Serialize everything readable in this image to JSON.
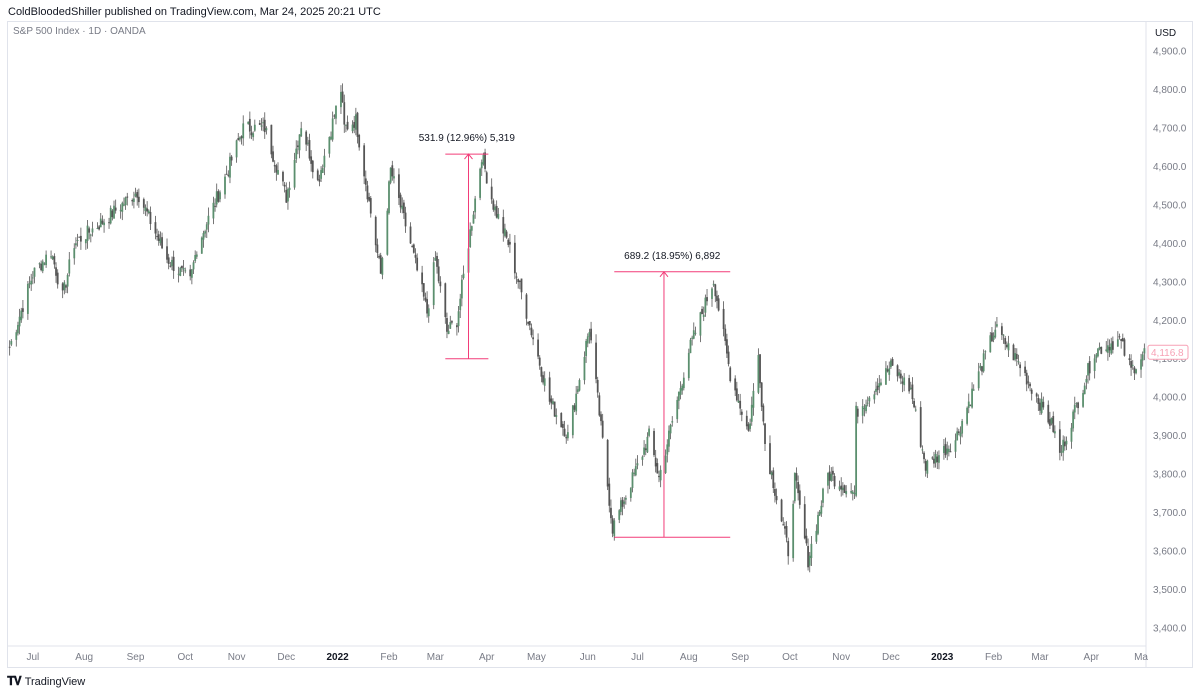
{
  "header": {
    "publisher": "ColdBloodedShiller published on TradingView.com, Mar 24, 2025 20:21 UTC"
  },
  "symbol": {
    "label": "S&P 500 Index · 1D · OANDA"
  },
  "footer": {
    "brand": "TradingView",
    "logo_icon": "tradingview-logo-icon"
  },
  "chart_data": {
    "type": "candlestick",
    "currency": "USD",
    "ylim": [
      3360,
      4960
    ],
    "y_ticks": [
      "4,900.0",
      "4,800.0",
      "4,700.0",
      "4,600.0",
      "4,500.0",
      "4,400.0",
      "4,300.0",
      "4,200.0",
      "4,100.0",
      "4,000.0",
      "3,900.0",
      "3,800.0",
      "3,700.0",
      "3,600.0",
      "3,500.0",
      "3,400.0"
    ],
    "y_tick_values": [
      4900,
      4800,
      4700,
      4600,
      4500,
      4400,
      4300,
      4200,
      4100,
      4000,
      3900,
      3800,
      3700,
      3600,
      3500,
      3400
    ],
    "x_ticks": [
      {
        "label": "Jul",
        "date": "2021-07-01",
        "bold": false
      },
      {
        "label": "Aug",
        "date": "2021-08-01",
        "bold": false
      },
      {
        "label": "Sep",
        "date": "2021-09-01",
        "bold": false
      },
      {
        "label": "Oct",
        "date": "2021-10-01",
        "bold": false
      },
      {
        "label": "Nov",
        "date": "2021-11-01",
        "bold": false
      },
      {
        "label": "Dec",
        "date": "2021-12-01",
        "bold": false
      },
      {
        "label": "2022",
        "date": "2022-01-01",
        "bold": true
      },
      {
        "label": "Feb",
        "date": "2022-02-01",
        "bold": false
      },
      {
        "label": "Mar",
        "date": "2022-03-01",
        "bold": false
      },
      {
        "label": "Apr",
        "date": "2022-04-01",
        "bold": false
      },
      {
        "label": "May",
        "date": "2022-05-01",
        "bold": false
      },
      {
        "label": "Jun",
        "date": "2022-06-01",
        "bold": false
      },
      {
        "label": "Jul",
        "date": "2022-07-01",
        "bold": false
      },
      {
        "label": "Aug",
        "date": "2022-08-01",
        "bold": false
      },
      {
        "label": "Sep",
        "date": "2022-09-01",
        "bold": false
      },
      {
        "label": "Oct",
        "date": "2022-10-01",
        "bold": false
      },
      {
        "label": "Nov",
        "date": "2022-11-01",
        "bold": false
      },
      {
        "label": "Dec",
        "date": "2022-12-01",
        "bold": false
      },
      {
        "label": "2023",
        "date": "2023-01-01",
        "bold": true
      },
      {
        "label": "Feb",
        "date": "2023-02-01",
        "bold": false
      },
      {
        "label": "Mar",
        "date": "2023-03-01",
        "bold": false
      },
      {
        "label": "Apr",
        "date": "2023-04-01",
        "bold": false
      },
      {
        "label": "Ma",
        "date": "2023-05-01",
        "bold": false
      }
    ],
    "x_range": [
      "2021-06-16",
      "2023-05-04"
    ],
    "close_anchors": [
      [
        "2021-06-17",
        4130
      ],
      [
        "2021-07-01",
        4320
      ],
      [
        "2021-07-12",
        4380
      ],
      [
        "2021-07-19",
        4260
      ],
      [
        "2021-07-26",
        4400
      ],
      [
        "2021-08-13",
        4460
      ],
      [
        "2021-09-02",
        4535
      ],
      [
        "2021-09-20",
        4360
      ],
      [
        "2021-10-04",
        4300
      ],
      [
        "2021-10-08",
        4390
      ],
      [
        "2021-10-25",
        4570
      ],
      [
        "2021-11-05",
        4700
      ],
      [
        "2021-11-18",
        4700
      ],
      [
        "2021-12-01",
        4520
      ],
      [
        "2021-12-10",
        4710
      ],
      [
        "2021-12-20",
        4560
      ],
      [
        "2022-01-03",
        4800
      ],
      [
        "2022-01-05",
        4700
      ],
      [
        "2022-01-12",
        4720
      ],
      [
        "2022-01-27",
        4320
      ],
      [
        "2022-02-02",
        4590
      ],
      [
        "2022-02-14",
        4400
      ],
      [
        "2022-02-24",
        4220
      ],
      [
        "2022-03-01",
        4360
      ],
      [
        "2022-03-08",
        4170
      ],
      [
        "2022-03-14",
        4200
      ],
      [
        "2022-03-29",
        4630
      ],
      [
        "2022-04-05",
        4500
      ],
      [
        "2022-04-14",
        4400
      ],
      [
        "2022-04-22",
        4270
      ],
      [
        "2022-05-09",
        3990
      ],
      [
        "2022-05-20",
        3900
      ],
      [
        "2022-06-02",
        4180
      ],
      [
        "2022-06-16",
        3660
      ],
      [
        "2022-07-01",
        3820
      ],
      [
        "2022-07-08",
        3900
      ],
      [
        "2022-07-14",
        3790
      ],
      [
        "2022-08-01",
        4120
      ],
      [
        "2022-08-16",
        4305
      ],
      [
        "2022-08-26",
        4060
      ],
      [
        "2022-09-06",
        3910
      ],
      [
        "2022-09-12",
        4110
      ],
      [
        "2022-09-16",
        3880
      ],
      [
        "2022-09-30",
        3600
      ],
      [
        "2022-10-04",
        3790
      ],
      [
        "2022-10-12",
        3577
      ],
      [
        "2022-10-24",
        3800
      ],
      [
        "2022-11-09",
        3750
      ],
      [
        "2022-11-10",
        3960
      ],
      [
        "2022-12-01",
        4080
      ],
      [
        "2022-12-13",
        4020
      ],
      [
        "2022-12-22",
        3820
      ],
      [
        "2023-01-09",
        3890
      ],
      [
        "2023-02-02",
        4180
      ],
      [
        "2023-02-16",
        4090
      ],
      [
        "2023-03-09",
        3920
      ],
      [
        "2023-03-13",
        3850
      ],
      [
        "2023-04-03",
        4120
      ],
      [
        "2023-04-18",
        4150
      ],
      [
        "2023-04-25",
        4070
      ],
      [
        "2023-05-03",
        4117
      ]
    ],
    "last_price": "4,116.8",
    "last_value": 4116.8,
    "annotations": [
      {
        "label": "531.9 (12.96%) 5,319",
        "from_date": "2022-03-07",
        "to_date": "2022-04-02",
        "arrow_date": "2022-03-21",
        "low": 4100,
        "high": 4632
      },
      {
        "label": "689.2 (18.95%) 6,892",
        "from_date": "2022-06-17",
        "to_date": "2022-08-26",
        "arrow_date": "2022-07-17",
        "low": 3636,
        "high": 4326
      }
    ],
    "colors": {
      "up": "#5b8f6e",
      "down": "#555555",
      "wick": "#555555",
      "measure": "#f23d79",
      "last_price_label": "#f7a1b5",
      "axis_text": "#787b86",
      "grid": "#f0f3fa"
    },
    "grid": false
  }
}
